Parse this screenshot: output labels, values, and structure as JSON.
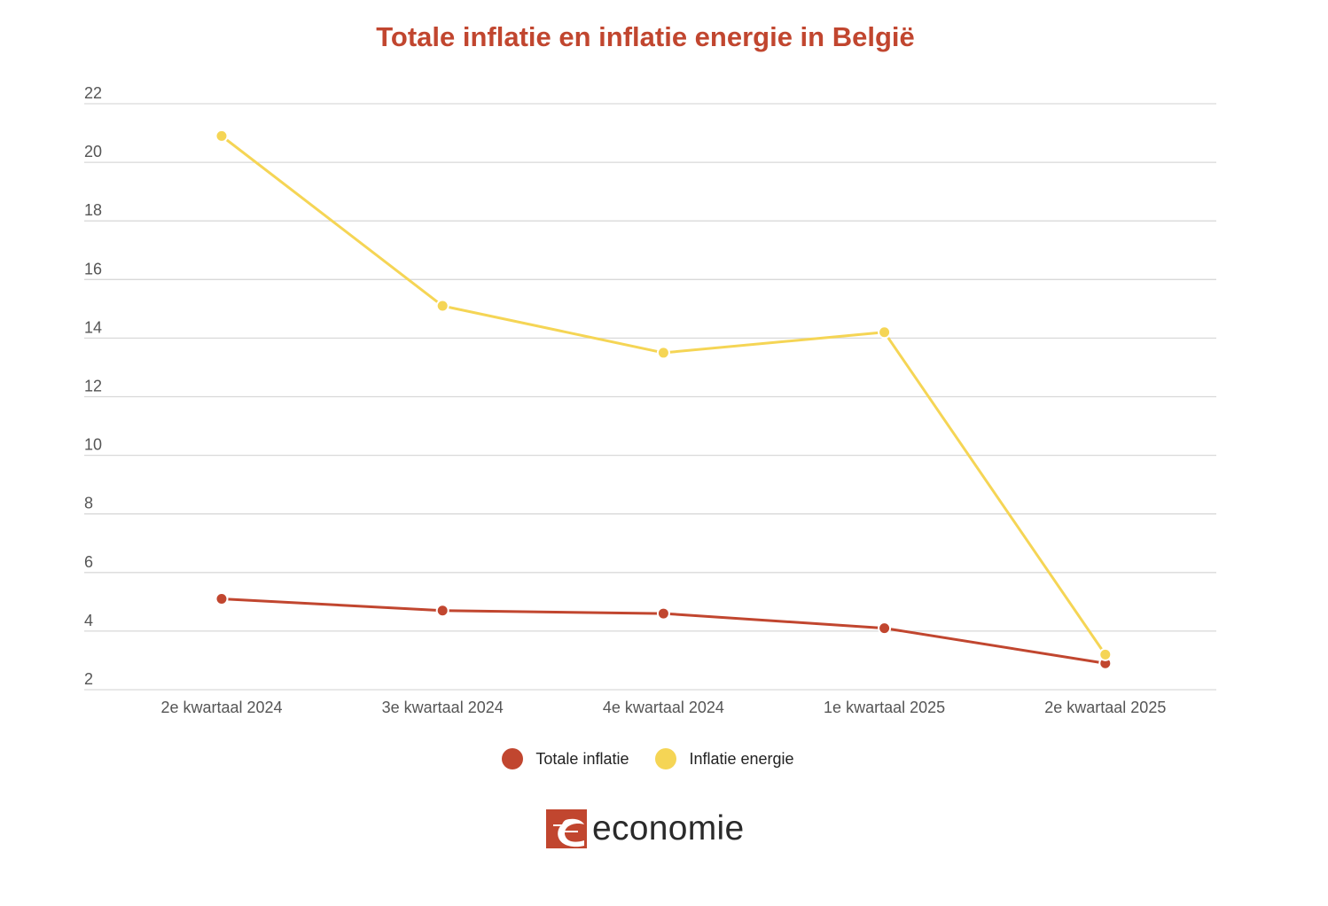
{
  "chart_data": {
    "type": "line",
    "title": "Totale inflatie en inflatie energie in België",
    "categories": [
      "2e kwartaal 2024",
      "3e kwartaal 2024",
      "4e kwartaal 2024",
      "1e kwartaal 2025",
      "2e kwartaal 2025"
    ],
    "series": [
      {
        "name": "Totale inflatie",
        "color": "#c1462f",
        "values": [
          5.1,
          4.7,
          4.6,
          4.1,
          2.9
        ]
      },
      {
        "name": "Inflatie energie",
        "color": "#f5d555",
        "values": [
          20.9,
          15.1,
          13.5,
          14.2,
          3.2
        ]
      }
    ],
    "y_ticks": [
      "2",
      "4",
      "6",
      "8",
      "10",
      "12",
      "14",
      "16",
      "18",
      "20",
      "22"
    ],
    "ylim": [
      2,
      22
    ],
    "grid": true,
    "legend_position": "bottom-center"
  },
  "legend": {
    "items": [
      {
        "label": "Totale inflatie",
        "color": "#c1462f"
      },
      {
        "label": "Inflatie energie",
        "color": "#f5d555"
      }
    ]
  },
  "logo": {
    "text": "economie",
    "color": "#c1462f"
  }
}
